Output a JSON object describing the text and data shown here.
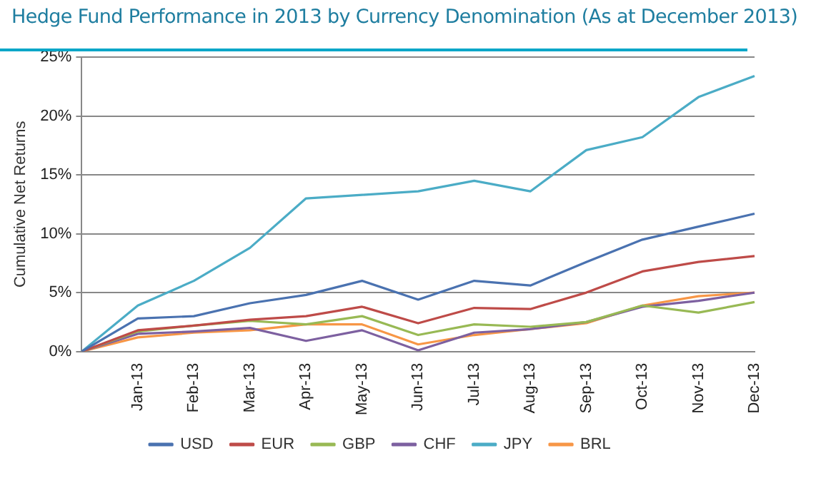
{
  "chart_data": {
    "type": "line",
    "title": "Hedge Fund Performance in 2013 by Currency Denomination (As at December 2013)",
    "ylabel": "Cumulative Net Returns",
    "categories": [
      null,
      "Jan-13",
      "Feb-13",
      "Mar-13",
      "Apr-13",
      "May-13",
      "Jun-13",
      "Jul-13",
      "Aug-13",
      "Sep-13",
      "Oct-13",
      "Nov-13",
      "Dec-13"
    ],
    "series": [
      {
        "name": "USD",
        "color": "#4a72b0",
        "values": [
          0,
          2.8,
          3.0,
          4.1,
          4.8,
          6.0,
          4.4,
          6.0,
          5.6,
          7.6,
          9.5,
          10.6,
          11.7
        ]
      },
      {
        "name": "EUR",
        "color": "#be4b48",
        "values": [
          0,
          1.8,
          2.2,
          2.7,
          3.0,
          3.8,
          2.4,
          3.7,
          3.6,
          5.0,
          6.8,
          7.6,
          8.1
        ]
      },
      {
        "name": "GBP",
        "color": "#98b954",
        "values": [
          0,
          1.7,
          2.2,
          2.6,
          2.3,
          3.0,
          1.4,
          2.3,
          2.1,
          2.5,
          3.9,
          3.3,
          4.2
        ]
      },
      {
        "name": "CHF",
        "color": "#7d60a0",
        "values": [
          0,
          1.5,
          1.7,
          2.0,
          0.9,
          1.8,
          0.1,
          1.6,
          1.9,
          2.5,
          3.8,
          4.3,
          5.0
        ]
      },
      {
        "name": "JPY",
        "color": "#4bacc6",
        "values": [
          0,
          3.9,
          6.0,
          8.8,
          13.0,
          13.3,
          13.6,
          14.5,
          13.6,
          17.1,
          18.2,
          21.6,
          23.4
        ]
      },
      {
        "name": "BRL",
        "color": "#f79646",
        "values": [
          0,
          1.2,
          1.6,
          1.8,
          2.3,
          2.3,
          0.6,
          1.4,
          1.9,
          2.4,
          3.9,
          4.7,
          5.0
        ]
      }
    ],
    "ylim": [
      0,
      25
    ],
    "yticks": [
      {
        "value": 0,
        "label": "0%"
      },
      {
        "value": 5,
        "label": "5%"
      },
      {
        "value": 10,
        "label": "10%"
      },
      {
        "value": 15,
        "label": "15%"
      },
      {
        "value": 20,
        "label": "20%"
      },
      {
        "value": 25,
        "label": "25%"
      }
    ],
    "grid": "y",
    "legend": "bottom",
    "marker": "none",
    "line_style": "solid"
  }
}
